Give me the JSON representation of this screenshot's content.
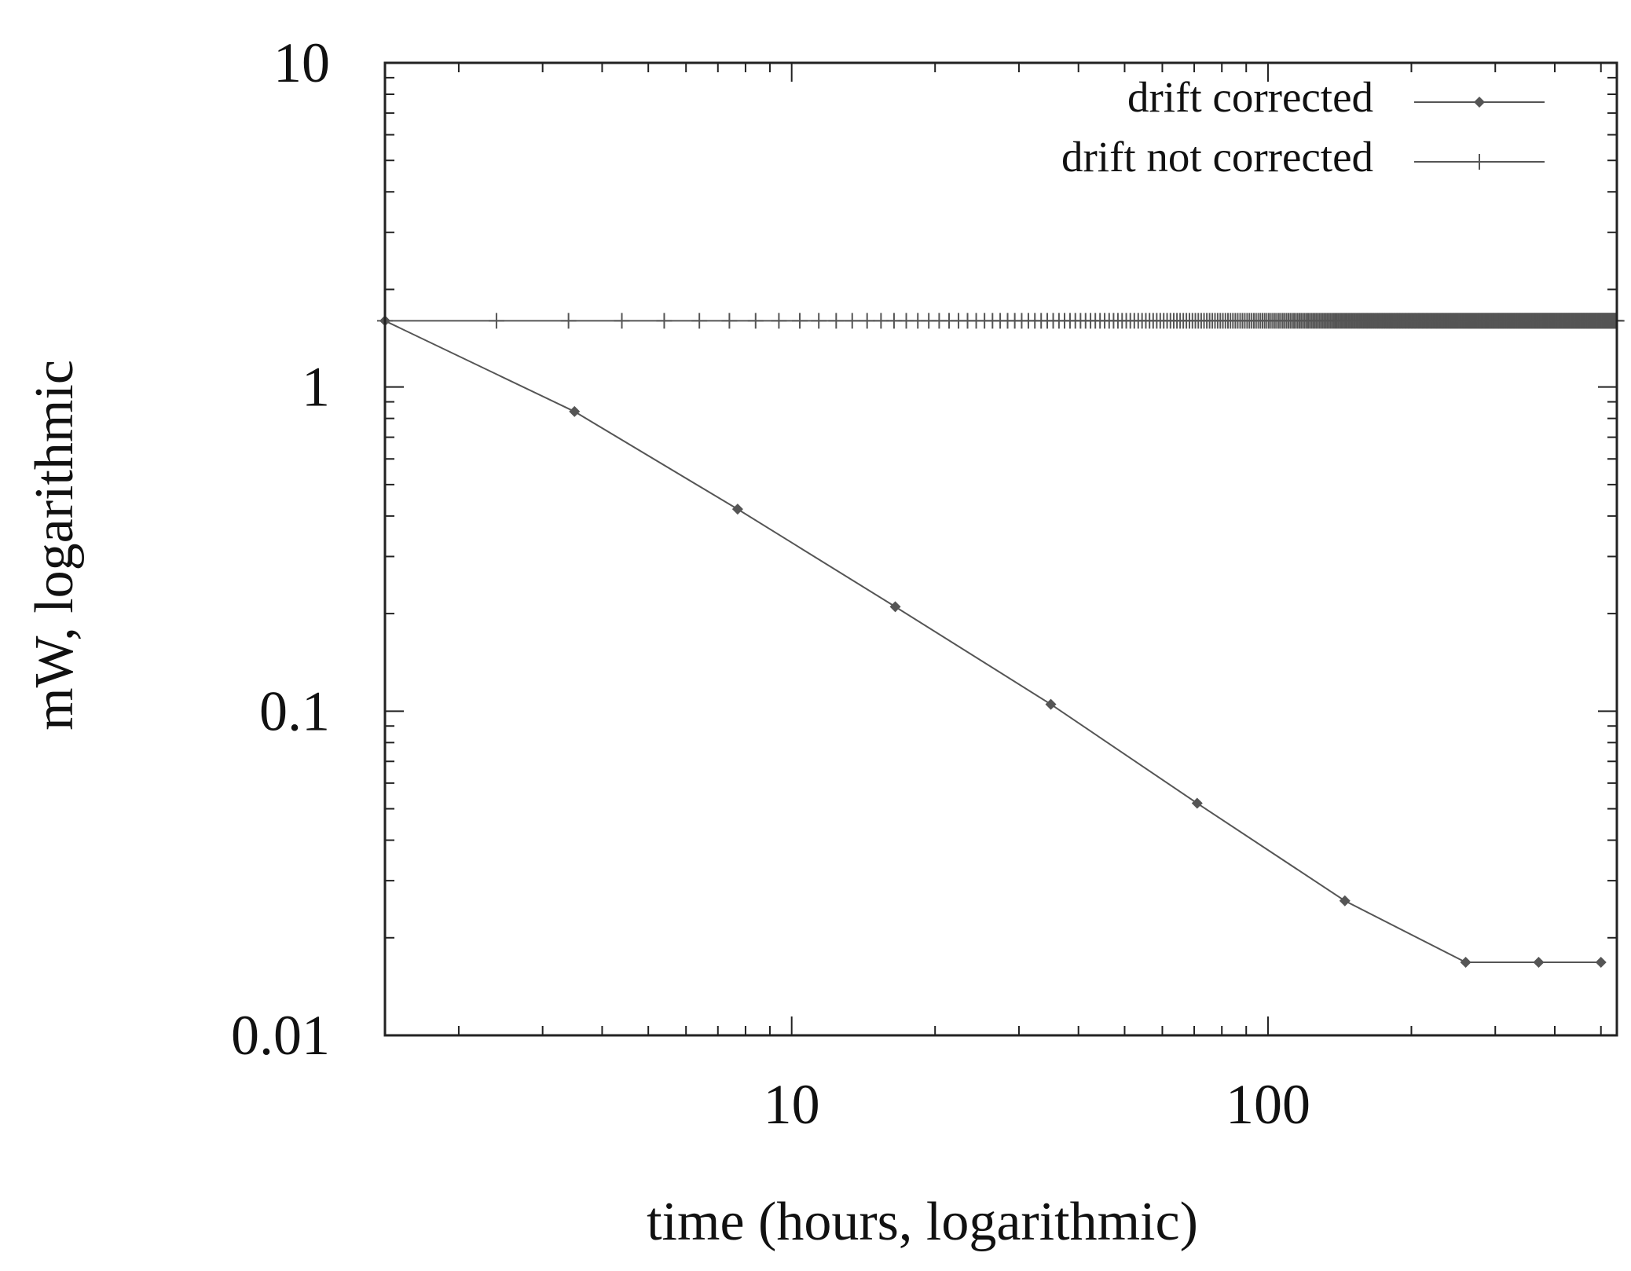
{
  "chart_data": {
    "type": "line",
    "x_scale": "log",
    "y_scale": "log",
    "xlim": [
      1.4,
      540
    ],
    "ylim": [
      0.01,
      10
    ],
    "x_ticks": [
      {
        "value": 10,
        "label": "10"
      },
      {
        "value": 100,
        "label": "100"
      }
    ],
    "y_ticks": [
      {
        "value": 10,
        "label": "10"
      },
      {
        "value": 1,
        "label": "1"
      },
      {
        "value": 0.1,
        "label": "0.1"
      },
      {
        "value": 0.01,
        "label": "0.01"
      }
    ],
    "xlabel": "time (hours, logarithmic)",
    "ylabel": "mW, logarithmic",
    "legend_position": "top-right",
    "grid": false,
    "series": [
      {
        "name": "drift corrected",
        "marker": "diamond",
        "color": "#555555",
        "x": [
          1.4,
          3.5,
          7.7,
          16.5,
          35,
          71,
          145,
          260,
          370,
          500
        ],
        "y": [
          1.6,
          0.84,
          0.42,
          0.21,
          0.105,
          0.052,
          0.026,
          0.0168,
          0.0168,
          0.0168
        ]
      },
      {
        "name": "drift not corrected",
        "marker": "plus",
        "color": "#555555",
        "y_constant": 1.6,
        "x_start": 1.4,
        "x_end": 540,
        "x_step": 1
      }
    ]
  }
}
